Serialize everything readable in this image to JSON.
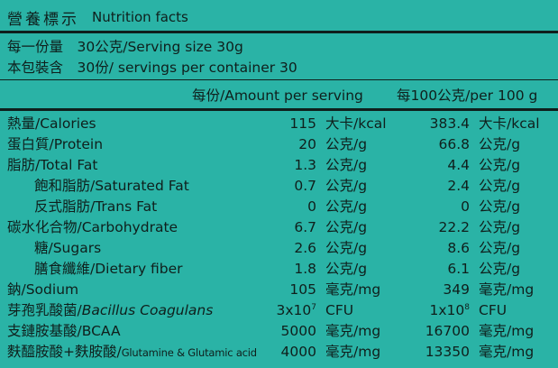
{
  "title": {
    "zh": "營養標示",
    "en": "Nutrition facts"
  },
  "serving": {
    "size": "每一份量　30公克/Serving size 30g",
    "per_container": "本包裝含　30份/ servings per container 30"
  },
  "header": {
    "per_serving": "每份/Amount per serving",
    "per_100g": "每100公克/per 100 g"
  },
  "rows": [
    {
      "label": "熱量/Calories",
      "v1": "115",
      "u1": "大卡/kcal",
      "v2": "383.4",
      "u2": "大卡/kcal"
    },
    {
      "label": "蛋白質/Protein",
      "v1": "20",
      "u1": "公克/g",
      "v2": "66.8",
      "u2": "公克/g"
    },
    {
      "label": "脂肪/Total Fat",
      "v1": "1.3",
      "u1": "公克/g",
      "v2": "4.4",
      "u2": "公克/g"
    },
    {
      "label": "飽和脂肪/Saturated Fat",
      "v1": "0.7",
      "u1": "公克/g",
      "v2": "2.4",
      "u2": "公克/g"
    },
    {
      "label": "反式脂肪/Trans Fat",
      "v1": "0",
      "u1": "公克/g",
      "v2": "0",
      "u2": "公克/g"
    },
    {
      "label": "碳水化合物/Carbohydrate",
      "v1": "6.7",
      "u1": "公克/g",
      "v2": "22.2",
      "u2": "公克/g"
    },
    {
      "label": "糖/Sugars",
      "v1": "2.6",
      "u1": "公克/g",
      "v2": "8.6",
      "u2": "公克/g"
    },
    {
      "label": "膳食纖維/Dietary fiber",
      "v1": "1.8",
      "u1": "公克/g",
      "v2": "6.1",
      "u2": "公克/g"
    },
    {
      "label": "鈉/Sodium",
      "v1": "105",
      "u1": "毫克/mg",
      "v2": "349",
      "u2": "毫克/mg"
    },
    {
      "label_zh": "芽孢乳酸菌/",
      "label_en": "Bacillus Coagulans",
      "v1_base": "3x10",
      "v1_exp": "7",
      "u1": "CFU",
      "v2_base": "1x10",
      "v2_exp": "8",
      "u2": "CFU"
    },
    {
      "label": "支鏈胺基酸/BCAA",
      "v1": "5000",
      "u1": "毫克/mg",
      "v2": "16700",
      "u2": "毫克/mg"
    },
    {
      "label_zh": "麩醯胺酸+麩胺酸/",
      "label_en": "Glutamine & Glutamic acid",
      "v1": "4000",
      "u1": "毫克/mg",
      "v2": "13350",
      "u2": "毫克/mg"
    }
  ]
}
